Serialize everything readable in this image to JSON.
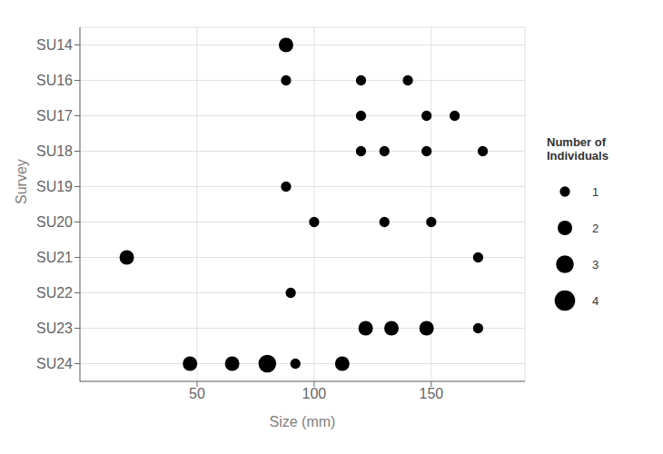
{
  "chart_data": {
    "type": "scatter",
    "xlabel": "Size (mm)",
    "ylabel": "Survey",
    "categories": [
      "SU14",
      "SU16",
      "SU17",
      "SU18",
      "SU19",
      "SU20",
      "SU21",
      "SU22",
      "SU23",
      "SU24"
    ],
    "points": [
      {
        "survey": "SU14",
        "size": 88,
        "n": 2
      },
      {
        "survey": "SU16",
        "size": 88,
        "n": 1
      },
      {
        "survey": "SU16",
        "size": 120,
        "n": 1
      },
      {
        "survey": "SU16",
        "size": 140,
        "n": 1
      },
      {
        "survey": "SU17",
        "size": 120,
        "n": 1
      },
      {
        "survey": "SU17",
        "size": 148,
        "n": 1
      },
      {
        "survey": "SU17",
        "size": 160,
        "n": 1
      },
      {
        "survey": "SU18",
        "size": 120,
        "n": 1
      },
      {
        "survey": "SU18",
        "size": 130,
        "n": 1
      },
      {
        "survey": "SU18",
        "size": 148,
        "n": 1
      },
      {
        "survey": "SU18",
        "size": 172,
        "n": 1
      },
      {
        "survey": "SU19",
        "size": 88,
        "n": 1
      },
      {
        "survey": "SU20",
        "size": 100,
        "n": 1
      },
      {
        "survey": "SU20",
        "size": 130,
        "n": 1
      },
      {
        "survey": "SU20",
        "size": 150,
        "n": 1
      },
      {
        "survey": "SU21",
        "size": 20,
        "n": 2
      },
      {
        "survey": "SU21",
        "size": 170,
        "n": 1
      },
      {
        "survey": "SU22",
        "size": 90,
        "n": 1
      },
      {
        "survey": "SU23",
        "size": 122,
        "n": 2
      },
      {
        "survey": "SU23",
        "size": 133,
        "n": 2
      },
      {
        "survey": "SU23",
        "size": 148,
        "n": 2
      },
      {
        "survey": "SU23",
        "size": 170,
        "n": 1
      },
      {
        "survey": "SU24",
        "size": 47,
        "n": 2
      },
      {
        "survey": "SU24",
        "size": 65,
        "n": 2
      },
      {
        "survey": "SU24",
        "size": 80,
        "n": 3
      },
      {
        "survey": "SU24",
        "size": 92,
        "n": 1
      },
      {
        "survey": "SU24",
        "size": 112,
        "n": 2
      }
    ],
    "color": "#000000",
    "xlim": [
      0,
      190
    ],
    "xticks": [
      50,
      100,
      150
    ],
    "grid": true,
    "size_legend": {
      "title": "Number of\nIndividuals",
      "values": [
        1,
        2,
        3,
        4
      ]
    }
  }
}
